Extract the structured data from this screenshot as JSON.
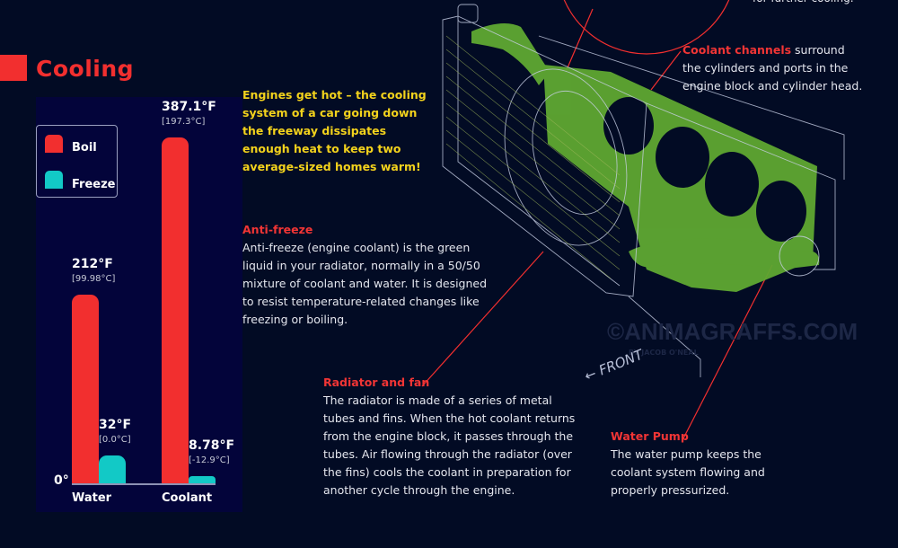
{
  "title": "Cooling",
  "intro": "Engines get hot – the cooling system of a car going down the freeway dissipates enough heat to keep two average-sized homes warm!",
  "antifreeze": {
    "heading": "Anti-freeze",
    "body": "Anti-freeze (engine coolant) is the green liquid in your radiator, normally in a 50/50 mixture of coolant and water. It is designed to resist temperature-related changes like freezing or boiling."
  },
  "radiator": {
    "heading": "Radiator and fan",
    "body": "The radiator is made of a series of metal tubes and fins. When the hot coolant returns from the engine block, it passes through the tubes. Air flowing through the radiator (over the fins) cools the coolant in preparation for another cycle through the engine."
  },
  "water_pump": {
    "heading": "Water Pump",
    "body": "The water pump keeps the coolant system flowing and properly pressurized."
  },
  "coolant_channels": {
    "heading": "Coolant channels",
    "body": " surround the cylinders and ports in the engine block and cylinder head."
  },
  "top_cut_text": "for further cooling.",
  "front_label": "← FRONT",
  "watermark": "©ANIMAGRAFFS.COM",
  "watermark_sub": "BY JACOB O'NEAL",
  "colors": {
    "boil": "#f22f2f",
    "freeze": "#12c9c6",
    "coolant_green": "#5fa832",
    "background": "#020b24"
  },
  "chart_data": {
    "type": "bar",
    "categories": [
      "Water",
      "Coolant"
    ],
    "series": [
      {
        "name": "Boil",
        "values": [
          212,
          387.1
        ],
        "labels": [
          "212°F",
          "387.1°F"
        ],
        "sublabels": [
          "[99.98°C]",
          "[197.3°C]"
        ]
      },
      {
        "name": "Freeze",
        "values": [
          32,
          8.78
        ],
        "labels": [
          "32°F",
          "8.78°F"
        ],
        "sublabels": [
          "[0.0°C]",
          "[-12.9°C]"
        ]
      }
    ],
    "baseline_label": "0°",
    "ylim": [
      0,
      387.1
    ],
    "legend": "top-left",
    "grid": false
  }
}
